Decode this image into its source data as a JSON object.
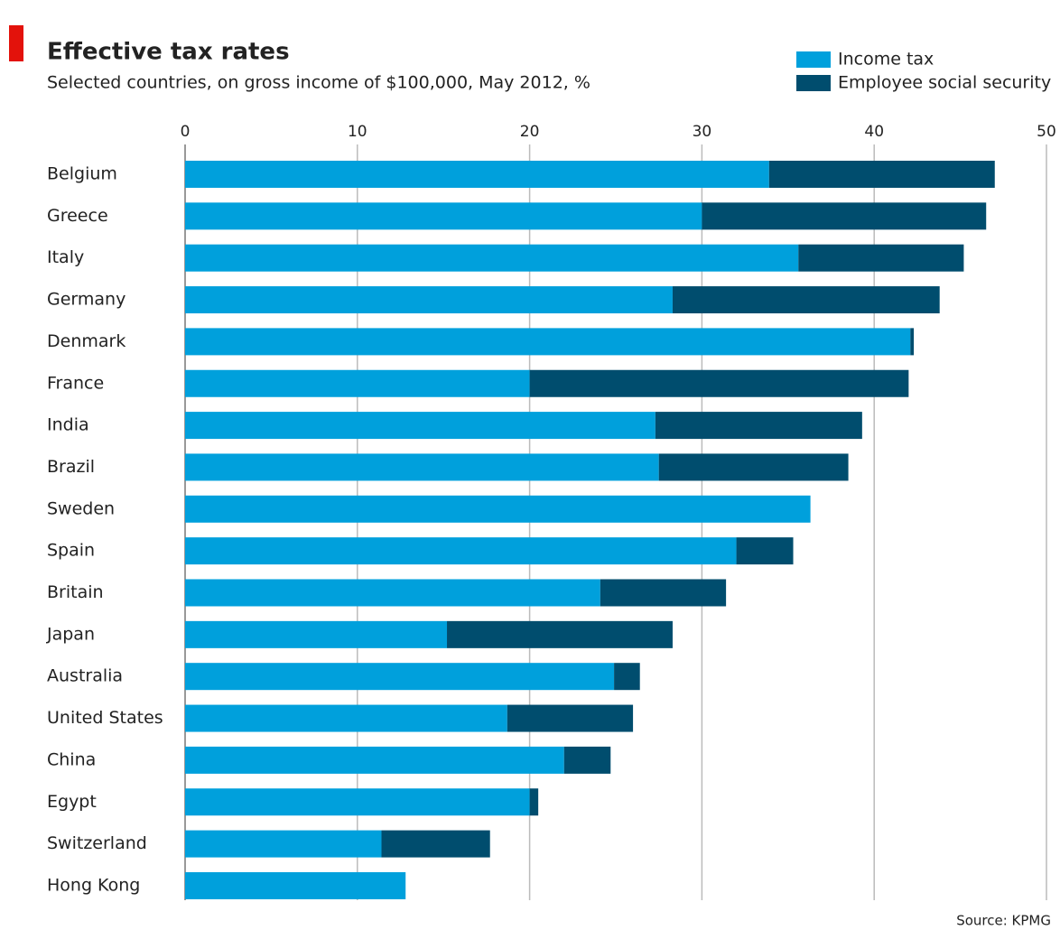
{
  "chart_data": {
    "type": "bar",
    "orientation": "horizontal",
    "stacked": true,
    "title": "Effective tax rates",
    "subtitle": "Selected countries, on gross income of $100,000, May 2012, %",
    "source": "Source: KPMG",
    "categories": [
      "Belgium",
      "Greece",
      "Italy",
      "Germany",
      "Denmark",
      "France",
      "India",
      "Brazil",
      "Sweden",
      "Spain",
      "Britain",
      "Japan",
      "Australia",
      "United States",
      "China",
      "Egypt",
      "Switzerland",
      "Hong Kong"
    ],
    "series": [
      {
        "name": "Income tax",
        "color": "#00a0dc",
        "values": [
          33.9,
          30.0,
          35.6,
          28.3,
          42.1,
          20.0,
          27.3,
          27.5,
          36.3,
          32.0,
          24.1,
          15.2,
          24.9,
          18.7,
          22.0,
          20.0,
          11.4,
          12.8
        ]
      },
      {
        "name": "Employee social security",
        "color": "#004d6e",
        "values": [
          13.1,
          16.5,
          9.6,
          15.5,
          0.2,
          22.0,
          12.0,
          11.0,
          0,
          3.3,
          7.3,
          13.1,
          1.5,
          7.3,
          2.7,
          0.5,
          6.3,
          0
        ]
      }
    ],
    "xlim": [
      0,
      50
    ],
    "xticks": [
      0,
      10,
      20,
      30,
      40,
      50
    ],
    "grid": true,
    "legend": "top-right"
  }
}
